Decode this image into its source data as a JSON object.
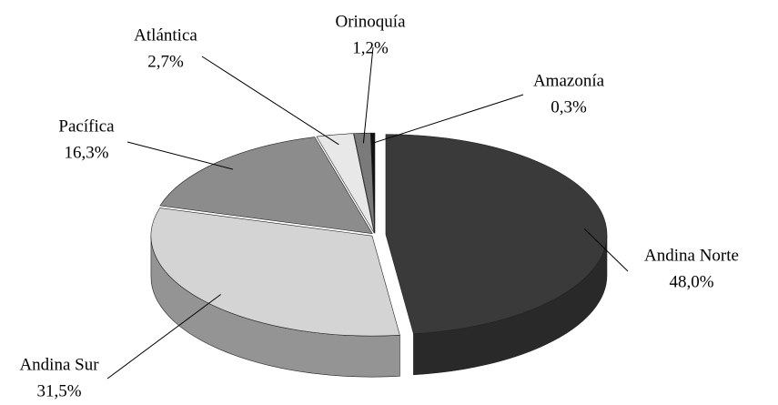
{
  "chart_data": {
    "type": "pie",
    "categories": [
      "Andina Norte",
      "Andina Sur",
      "Pacífica",
      "Atlántica",
      "Orinoquía",
      "Amazonía"
    ],
    "values": [
      48.0,
      31.5,
      16.3,
      2.7,
      1.2,
      0.3
    ],
    "value_labels": [
      "48,0%",
      "31,5%",
      "16,3%",
      "2,7%",
      "1,2%",
      "0,3%"
    ],
    "colors": [
      "#3a3a3a",
      "#d4d4d4",
      "#8c8c8c",
      "#e8e8e8",
      "#7a7a7a",
      "#111111"
    ]
  }
}
